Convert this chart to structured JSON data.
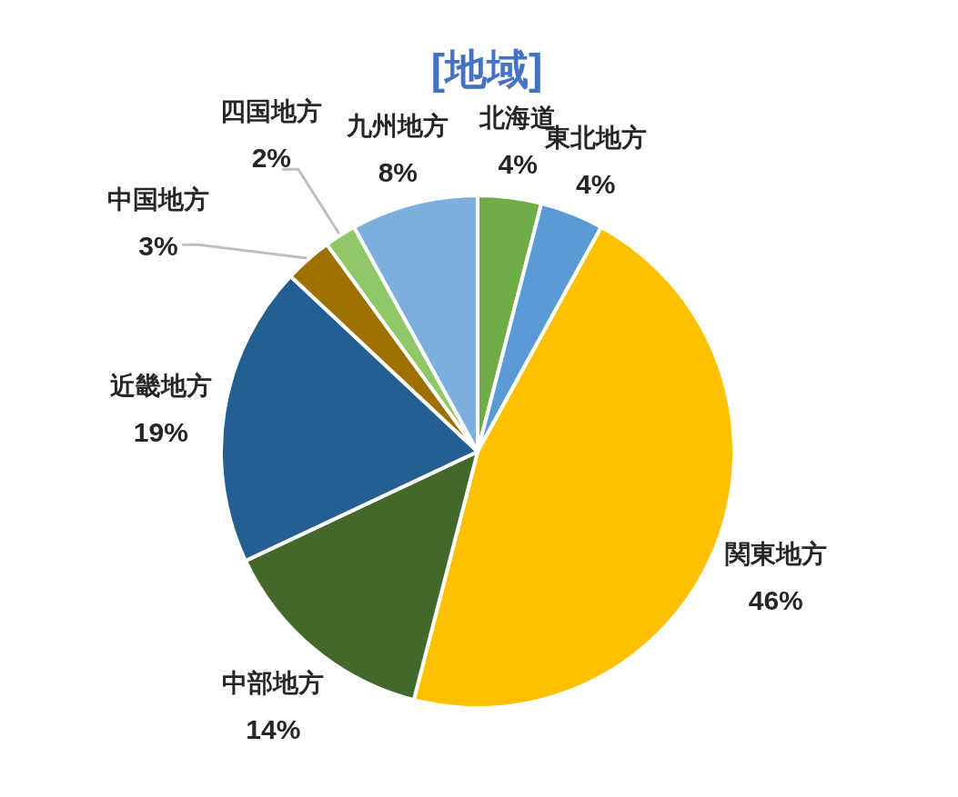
{
  "chart_data": {
    "type": "pie",
    "title": "[地域]",
    "categories": [
      "北海道",
      "東北地方",
      "関東地方",
      "中部地方",
      "近畿地方",
      "中国地方",
      "四国地方",
      "九州地方"
    ],
    "values": [
      4,
      4,
      46,
      14,
      19,
      3,
      2,
      8
    ],
    "colors": [
      "#70ad47",
      "#5b9bd5",
      "#ffc000",
      "#43682b",
      "#255e91",
      "#9e7000",
      "#8fc866",
      "#7cafdd"
    ],
    "value_labels": [
      "4%",
      "4%",
      "46%",
      "14%",
      "19%",
      "3%",
      "2%",
      "8%"
    ]
  }
}
